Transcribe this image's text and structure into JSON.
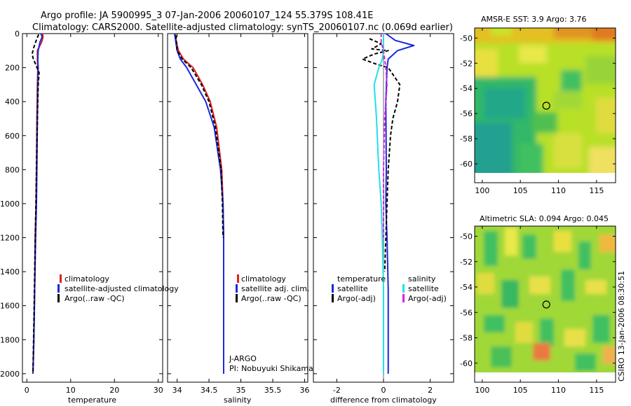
{
  "header": {
    "line1": "Argo profile: JA 5900995_3 07-Jan-2006 20060107_124 55.379S 108.41E",
    "line2": "Climatology: CARS2000. Satellite-adjusted climatology: synTS_20060107.nc (0.069d earlier)"
  },
  "side_label": "CSIRO 13-Jan-2006 08:30:51",
  "colors": {
    "climatology": "#dd2020",
    "satellite": "#1a28d8",
    "argo": "#000000",
    "sal_satellite": "#22e0e8",
    "sal_argo": "#e020e0",
    "map_circle": "#000000"
  },
  "chart_data": [
    {
      "id": "temp",
      "type": "line",
      "xlabel": "temperature",
      "xlim": [
        -1,
        31
      ],
      "xticks": [
        0,
        10,
        20,
        30
      ],
      "ylim": [
        0,
        2050
      ],
      "yticks": [
        0,
        200,
        400,
        600,
        800,
        1000,
        1200,
        1400,
        1600,
        1800,
        2000
      ],
      "legend": [
        "climatology",
        "satellite-adjusted climatology",
        "Argo(..raw -QC)"
      ],
      "series": [
        {
          "name": "climatology",
          "color": "#dd2020",
          "dash": "",
          "x": [
            3.6,
            3.7,
            3.4,
            2.4,
            2.4,
            2.5,
            2.4,
            2.3,
            2.2,
            2.1,
            1.9,
            1.8,
            1.6,
            1.4
          ],
          "y": [
            0,
            20,
            50,
            100,
            150,
            200,
            300,
            500,
            800,
            1000,
            1200,
            1500,
            1800,
            2000
          ]
        },
        {
          "name": "satellite-adjusted climatology",
          "color": "#1a28d8",
          "dash": "",
          "x": [
            3.2,
            3.5,
            3.0,
            2.6,
            2.5,
            2.6,
            2.5,
            2.4,
            2.3,
            2.2,
            2.0,
            1.8,
            1.6,
            1.4
          ],
          "y": [
            0,
            20,
            50,
            100,
            150,
            200,
            300,
            500,
            800,
            1000,
            1200,
            1500,
            1800,
            2000
          ]
        },
        {
          "name": "Argo(..raw -QC)",
          "color": "#000000",
          "dash": "5,3",
          "x": [
            2.7,
            2.3,
            2.0,
            1.6,
            1.2,
            1.5,
            2.0,
            2.8,
            2.6,
            2.4,
            2.2,
            2.0,
            1.8,
            1.6,
            1.4
          ],
          "y": [
            5,
            30,
            50,
            80,
            120,
            150,
            180,
            230,
            300,
            500,
            800,
            1100,
            1400,
            1700,
            2000
          ]
        }
      ]
    },
    {
      "id": "sal",
      "type": "line",
      "xlabel": "salinity",
      "xlim": [
        33.85,
        36.05
      ],
      "xticks": [
        34,
        34.5,
        35,
        35.5,
        36
      ],
      "ylim": [
        0,
        2050
      ],
      "legend": [
        "climatology",
        "satellite adj. clim.",
        "Argo(..raw -QC)"
      ],
      "annotation": [
        "J-ARGO",
        "PI: Nobuyuki Shikama"
      ],
      "series": [
        {
          "name": "climatology",
          "color": "#dd2020",
          "dash": "",
          "x": [
            33.97,
            33.99,
            34.02,
            34.1,
            34.25,
            34.4,
            34.52,
            34.62,
            34.7,
            34.72,
            34.73,
            34.73,
            34.73,
            34.73
          ],
          "y": [
            0,
            50,
            100,
            150,
            200,
            300,
            400,
            550,
            800,
            1000,
            1200,
            1500,
            1800,
            2000
          ]
        },
        {
          "name": "satellite adj. clim.",
          "color": "#1a28d8",
          "dash": "",
          "x": [
            33.96,
            33.98,
            34.0,
            34.05,
            34.15,
            34.3,
            34.45,
            34.58,
            34.68,
            34.72,
            34.73,
            34.73,
            34.73,
            34.73
          ],
          "y": [
            0,
            50,
            100,
            150,
            200,
            300,
            400,
            550,
            800,
            1000,
            1200,
            1500,
            1800,
            2000
          ]
        },
        {
          "name": "Argo(..raw -QC)",
          "color": "#000000",
          "dash": "5,3",
          "x": [
            33.98,
            33.99,
            34.0,
            34.08,
            34.22,
            34.38,
            34.5,
            34.6,
            34.69,
            34.71,
            34.72
          ],
          "y": [
            10,
            50,
            100,
            150,
            200,
            300,
            400,
            550,
            800,
            1000,
            1200
          ]
        }
      ]
    },
    {
      "id": "diff",
      "type": "line",
      "xlabel": "difference from climatology",
      "xlim": [
        -3,
        3
      ],
      "xticks": [
        -2,
        0,
        2
      ],
      "ylim": [
        0,
        2050
      ],
      "legend": [
        "temperature",
        "satellite",
        "Argo(-adj)",
        "salinity",
        "satellite",
        "Argo(-adj)"
      ],
      "series": [
        {
          "name": "temperature satellite",
          "color": "#1a28d8",
          "dash": "",
          "x": [
            0.1,
            0.5,
            1.3,
            0.6,
            0.2,
            0.15,
            0.1,
            0.12,
            0.1,
            0.15,
            0.2,
            0.2,
            0.2
          ],
          "y": [
            0,
            40,
            70,
            100,
            150,
            200,
            400,
            800,
            1000,
            1200,
            1500,
            1800,
            2000
          ]
        },
        {
          "name": "temperature Argo(-adj)",
          "color": "#000000",
          "dash": "5,3",
          "x": [
            -0.6,
            -0.1,
            -0.5,
            0.2,
            -0.4,
            -0.9,
            -0.3,
            0.2,
            0.7,
            0.6,
            0.4,
            0.3,
            0.2,
            0.15,
            0.1,
            0.05
          ],
          "y": [
            30,
            60,
            90,
            100,
            120,
            150,
            180,
            200,
            300,
            400,
            500,
            600,
            800,
            1000,
            1200,
            1400
          ]
        },
        {
          "name": "salinity satellite",
          "color": "#22e0e8",
          "dash": "",
          "x": [
            0,
            0,
            -0.05,
            -0.2,
            -0.4,
            -0.3,
            -0.2,
            -0.1,
            -0.05,
            0,
            0
          ],
          "y": [
            0,
            100,
            150,
            200,
            300,
            500,
            800,
            1000,
            1200,
            1500,
            2000
          ]
        },
        {
          "name": "salinity Argo(-adj)",
          "color": "#e020e0",
          "dash": "5,3",
          "x": [
            -0.1,
            -0.1,
            0,
            0.1,
            0.15,
            0.05,
            0,
            0,
            0
          ],
          "y": [
            0,
            50,
            100,
            200,
            300,
            500,
            800,
            1000,
            1200
          ]
        }
      ]
    },
    {
      "id": "sst_map",
      "type": "heatmap",
      "title": "AMSR-E SST: 3.9 Argo: 3.76",
      "xlim": [
        99,
        117.5
      ],
      "xticks": [
        100,
        105,
        110,
        115
      ],
      "ylim": [
        -61.5,
        -49.2
      ],
      "yticks": [
        -50,
        -52,
        -54,
        -56,
        -58,
        -60
      ],
      "data_lat_min": -60,
      "marker": {
        "lon": 108.41,
        "lat": -55.379
      }
    },
    {
      "id": "sla_map",
      "type": "heatmap",
      "title": "Altimetric SLA: 0.094 Argo: 0.045",
      "xlim": [
        99,
        117.5
      ],
      "xticks": [
        100,
        105,
        110,
        115
      ],
      "ylim": [
        -61.5,
        -49.2
      ],
      "yticks": [
        -50,
        -52,
        -54,
        -56,
        -58,
        -60
      ],
      "data_lat_min": -60,
      "marker": {
        "lon": 108.41,
        "lat": -55.379
      }
    }
  ]
}
